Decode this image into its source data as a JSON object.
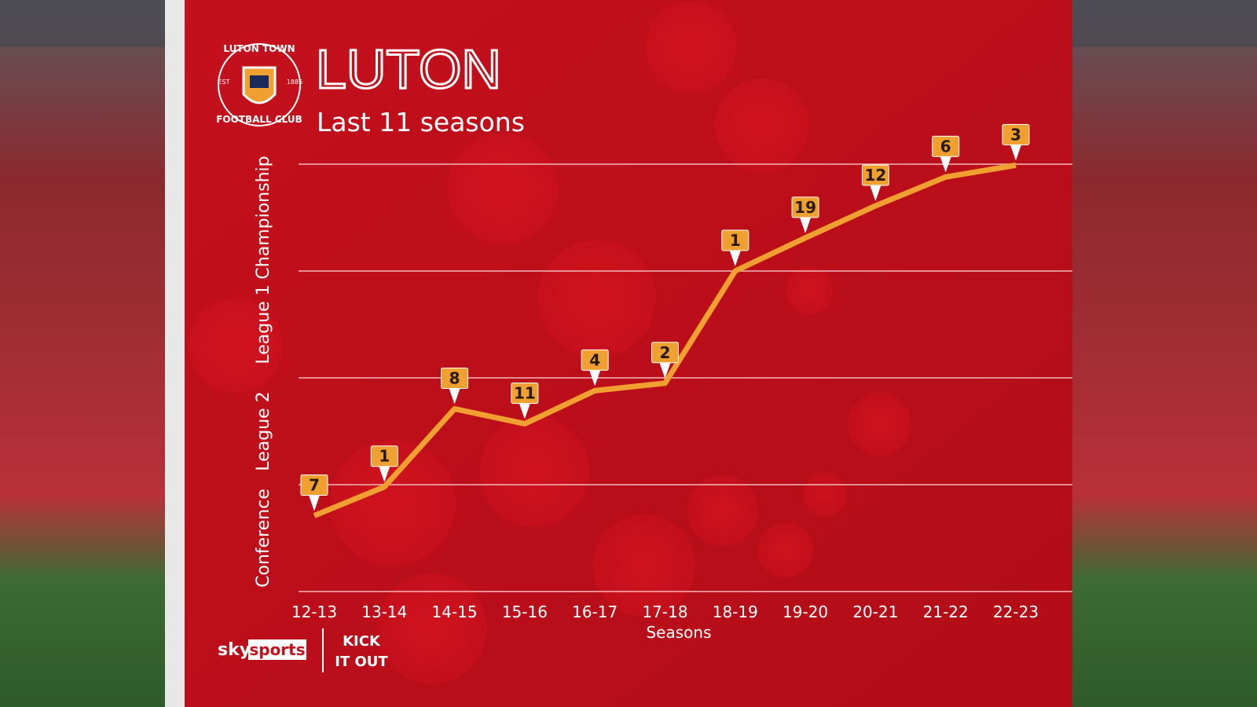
{
  "chart_data": {
    "type": "line",
    "title": "LUTON",
    "subtitle": "Last 11 seasons",
    "x_label": "Seasons",
    "categories": [
      "12-13",
      "13-14",
      "14-15",
      "15-16",
      "16-17",
      "17-18",
      "18-19",
      "19-20",
      "20-21",
      "21-22",
      "22-23"
    ],
    "bands": [
      "Conference",
      "League 2",
      "League 1",
      "Championship"
    ],
    "ylim": [
      0,
      4
    ],
    "series": [
      {
        "name": "Luton",
        "color": "#f0a030",
        "values": [
          0.71,
          0.98,
          1.71,
          1.57,
          1.88,
          1.95,
          3.0,
          3.31,
          3.61,
          3.88,
          3.99
        ],
        "positions": [
          "7",
          "1",
          "8",
          "11",
          "4",
          "2",
          "1",
          "19",
          "12",
          "6",
          "3"
        ]
      }
    ],
    "badge": {
      "top": "LUTON TOWN",
      "bottom": "FOOTBALL CLUB",
      "left": "EST",
      "right": "1885"
    },
    "brands": {
      "broadcaster": "sky",
      "channel": "sports",
      "campaign_top": "KICK",
      "campaign_bottom": "IT OUT"
    }
  }
}
